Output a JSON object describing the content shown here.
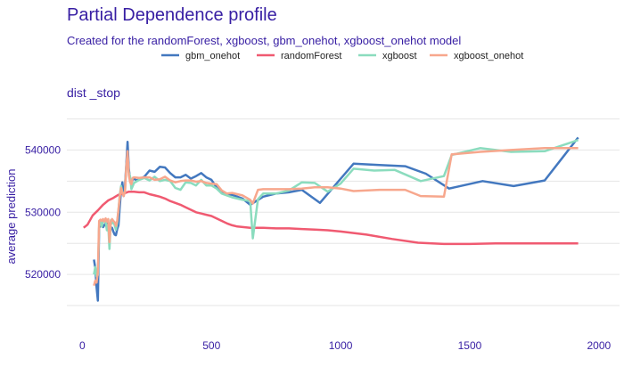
{
  "chart_data": {
    "type": "line",
    "title": "Partial Dependence profile",
    "subtitle": "Created for the randomForest, xgboost, gbm_onehot, xgboost_onehot model",
    "panel_label": "dist _stop",
    "xlabel": "",
    "ylabel": "average prediction",
    "xlim": [
      -60,
      2080
    ],
    "ylim": [
      512000,
      546500
    ],
    "x_ticks": [
      0,
      500,
      1000,
      1500,
      2000
    ],
    "x_tick_labels": [
      "0",
      "500",
      "1000",
      "1500",
      "2000"
    ],
    "y_ticks": [
      520000,
      530000,
      540000
    ],
    "y_tick_labels": [
      "520000",
      "530000",
      "540000"
    ],
    "grid": true,
    "legend_position": "top",
    "series": [
      {
        "name": "gbm_onehot",
        "color": "#4378bf",
        "points": [
          [
            45,
            522400
          ],
          [
            50,
            521000
          ],
          [
            55,
            518000
          ],
          [
            60,
            515800
          ],
          [
            65,
            527500
          ],
          [
            70,
            527800
          ],
          [
            75,
            528200
          ],
          [
            80,
            527600
          ],
          [
            85,
            527900
          ],
          [
            90,
            528200
          ],
          [
            95,
            527700
          ],
          [
            100,
            528300
          ],
          [
            105,
            528000
          ],
          [
            110,
            527300
          ],
          [
            115,
            527500
          ],
          [
            120,
            526900
          ],
          [
            125,
            526400
          ],
          [
            130,
            526300
          ],
          [
            135,
            527300
          ],
          [
            140,
            527900
          ],
          [
            145,
            531000
          ],
          [
            150,
            533500
          ],
          [
            155,
            534800
          ],
          [
            160,
            532600
          ],
          [
            165,
            534200
          ],
          [
            170,
            537500
          ],
          [
            175,
            541300
          ],
          [
            180,
            537000
          ],
          [
            185,
            535200
          ],
          [
            190,
            534700
          ],
          [
            195,
            535200
          ],
          [
            200,
            535400
          ],
          [
            210,
            535100
          ],
          [
            220,
            535300
          ],
          [
            240,
            535700
          ],
          [
            260,
            536700
          ],
          [
            280,
            536500
          ],
          [
            300,
            537300
          ],
          [
            320,
            537200
          ],
          [
            340,
            536300
          ],
          [
            360,
            535600
          ],
          [
            380,
            535600
          ],
          [
            400,
            536000
          ],
          [
            420,
            535400
          ],
          [
            440,
            535800
          ],
          [
            460,
            536300
          ],
          [
            480,
            535600
          ],
          [
            500,
            535200
          ],
          [
            520,
            534000
          ],
          [
            540,
            533200
          ],
          [
            560,
            532900
          ],
          [
            580,
            532800
          ],
          [
            620,
            532200
          ],
          [
            650,
            531200
          ],
          [
            700,
            532500
          ],
          [
            750,
            533000
          ],
          [
            800,
            533200
          ],
          [
            850,
            533600
          ],
          [
            920,
            531500
          ],
          [
            1050,
            537800
          ],
          [
            1150,
            537600
          ],
          [
            1250,
            537400
          ],
          [
            1330,
            536200
          ],
          [
            1420,
            533800
          ],
          [
            1550,
            535000
          ],
          [
            1670,
            534200
          ],
          [
            1790,
            535100
          ],
          [
            1920,
            542000
          ]
        ]
      },
      {
        "name": "randomForest",
        "color": "#f05a71",
        "points": [
          [
            5,
            527500
          ],
          [
            20,
            528000
          ],
          [
            40,
            529500
          ],
          [
            60,
            530300
          ],
          [
            80,
            531200
          ],
          [
            100,
            531900
          ],
          [
            120,
            532300
          ],
          [
            140,
            532800
          ],
          [
            160,
            533000
          ],
          [
            180,
            533300
          ],
          [
            200,
            533300
          ],
          [
            220,
            533200
          ],
          [
            240,
            533200
          ],
          [
            260,
            532900
          ],
          [
            280,
            532700
          ],
          [
            300,
            532500
          ],
          [
            320,
            532200
          ],
          [
            340,
            531800
          ],
          [
            360,
            531500
          ],
          [
            380,
            531200
          ],
          [
            400,
            530800
          ],
          [
            420,
            530400
          ],
          [
            440,
            530000
          ],
          [
            460,
            529800
          ],
          [
            480,
            529600
          ],
          [
            500,
            529400
          ],
          [
            520,
            529000
          ],
          [
            540,
            528600
          ],
          [
            560,
            528200
          ],
          [
            580,
            527900
          ],
          [
            600,
            527700
          ],
          [
            650,
            527500
          ],
          [
            700,
            527500
          ],
          [
            750,
            527400
          ],
          [
            800,
            527400
          ],
          [
            850,
            527300
          ],
          [
            900,
            527200
          ],
          [
            950,
            527100
          ],
          [
            1000,
            526900
          ],
          [
            1100,
            526400
          ],
          [
            1200,
            525700
          ],
          [
            1300,
            525100
          ],
          [
            1400,
            524900
          ],
          [
            1500,
            524900
          ],
          [
            1600,
            525000
          ],
          [
            1700,
            525000
          ],
          [
            1800,
            525000
          ],
          [
            1920,
            525000
          ]
        ]
      },
      {
        "name": "xgboost",
        "color": "#8bdcbe",
        "points": [
          [
            45,
            520000
          ],
          [
            50,
            521200
          ],
          [
            55,
            519700
          ],
          [
            60,
            519900
          ],
          [
            65,
            527800
          ],
          [
            70,
            528700
          ],
          [
            75,
            527700
          ],
          [
            80,
            528500
          ],
          [
            85,
            528600
          ],
          [
            90,
            528500
          ],
          [
            95,
            527100
          ],
          [
            100,
            528000
          ],
          [
            105,
            524100
          ],
          [
            110,
            528700
          ],
          [
            115,
            528200
          ],
          [
            120,
            528600
          ],
          [
            125,
            527900
          ],
          [
            130,
            527200
          ],
          [
            135,
            528300
          ],
          [
            140,
            530300
          ],
          [
            145,
            532800
          ],
          [
            150,
            534200
          ],
          [
            155,
            533200
          ],
          [
            160,
            532800
          ],
          [
            165,
            533300
          ],
          [
            170,
            537200
          ],
          [
            175,
            539300
          ],
          [
            180,
            536400
          ],
          [
            185,
            535700
          ],
          [
            190,
            533700
          ],
          [
            195,
            534200
          ],
          [
            200,
            534700
          ],
          [
            220,
            535200
          ],
          [
            240,
            535500
          ],
          [
            260,
            535100
          ],
          [
            280,
            535700
          ],
          [
            300,
            535000
          ],
          [
            320,
            535200
          ],
          [
            340,
            535000
          ],
          [
            360,
            533900
          ],
          [
            380,
            533600
          ],
          [
            400,
            534800
          ],
          [
            420,
            534700
          ],
          [
            440,
            534300
          ],
          [
            460,
            535200
          ],
          [
            480,
            534300
          ],
          [
            500,
            534300
          ],
          [
            520,
            533800
          ],
          [
            540,
            533000
          ],
          [
            560,
            532700
          ],
          [
            580,
            532400
          ],
          [
            620,
            532000
          ],
          [
            650,
            531800
          ],
          [
            660,
            525800
          ],
          [
            680,
            532100
          ],
          [
            700,
            533000
          ],
          [
            750,
            533000
          ],
          [
            800,
            533500
          ],
          [
            850,
            534800
          ],
          [
            900,
            534700
          ],
          [
            950,
            533300
          ],
          [
            1000,
            534600
          ],
          [
            1050,
            537000
          ],
          [
            1130,
            536700
          ],
          [
            1210,
            536800
          ],
          [
            1310,
            535000
          ],
          [
            1400,
            535800
          ],
          [
            1430,
            539200
          ],
          [
            1540,
            540300
          ],
          [
            1660,
            539700
          ],
          [
            1790,
            539800
          ],
          [
            1920,
            541600
          ]
        ]
      },
      {
        "name": "xgboost_onehot",
        "color": "#f7a78d",
        "points": [
          [
            45,
            518200
          ],
          [
            50,
            519000
          ],
          [
            55,
            518700
          ],
          [
            60,
            520400
          ],
          [
            65,
            528600
          ],
          [
            70,
            528800
          ],
          [
            75,
            528600
          ],
          [
            80,
            528900
          ],
          [
            85,
            528500
          ],
          [
            90,
            529000
          ],
          [
            95,
            528500
          ],
          [
            100,
            528900
          ],
          [
            105,
            525200
          ],
          [
            110,
            528500
          ],
          [
            115,
            528900
          ],
          [
            120,
            528600
          ],
          [
            125,
            528400
          ],
          [
            130,
            527800
          ],
          [
            135,
            528600
          ],
          [
            140,
            530400
          ],
          [
            145,
            532500
          ],
          [
            150,
            533900
          ],
          [
            155,
            533100
          ],
          [
            160,
            532600
          ],
          [
            165,
            533300
          ],
          [
            170,
            537200
          ],
          [
            175,
            539800
          ],
          [
            180,
            536000
          ],
          [
            185,
            534800
          ],
          [
            190,
            534500
          ],
          [
            195,
            535500
          ],
          [
            200,
            535600
          ],
          [
            220,
            535500
          ],
          [
            240,
            535600
          ],
          [
            260,
            535600
          ],
          [
            280,
            535200
          ],
          [
            300,
            535300
          ],
          [
            320,
            535700
          ],
          [
            340,
            535100
          ],
          [
            360,
            534800
          ],
          [
            380,
            535000
          ],
          [
            400,
            535100
          ],
          [
            420,
            535100
          ],
          [
            440,
            534900
          ],
          [
            460,
            535000
          ],
          [
            480,
            534700
          ],
          [
            500,
            534600
          ],
          [
            520,
            534500
          ],
          [
            540,
            533500
          ],
          [
            560,
            533000
          ],
          [
            580,
            533100
          ],
          [
            620,
            532700
          ],
          [
            650,
            532000
          ],
          [
            660,
            531400
          ],
          [
            680,
            533600
          ],
          [
            700,
            533700
          ],
          [
            750,
            533700
          ],
          [
            800,
            533700
          ],
          [
            850,
            533800
          ],
          [
            900,
            534000
          ],
          [
            950,
            534000
          ],
          [
            1000,
            533800
          ],
          [
            1050,
            533400
          ],
          [
            1150,
            533600
          ],
          [
            1250,
            533600
          ],
          [
            1310,
            532600
          ],
          [
            1400,
            532500
          ],
          [
            1430,
            539300
          ],
          [
            1540,
            539700
          ],
          [
            1660,
            540000
          ],
          [
            1790,
            540300
          ],
          [
            1920,
            540300
          ]
        ]
      }
    ]
  }
}
